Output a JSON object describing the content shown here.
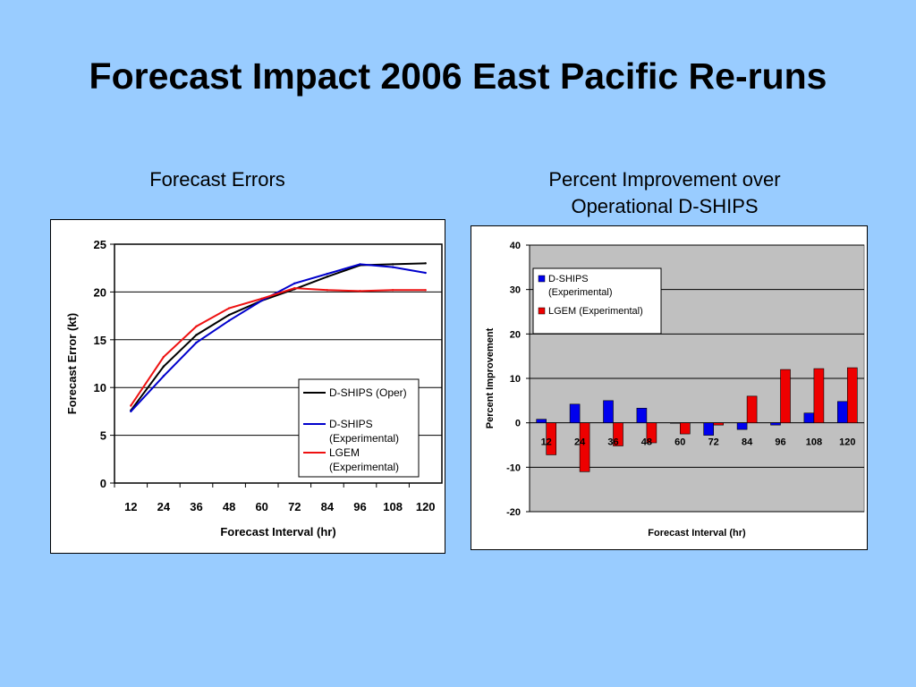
{
  "slide": {
    "title": "Forecast Impact 2006 East Pacific Re-runs"
  },
  "chart_data": [
    {
      "type": "line",
      "title": "Forecast Errors",
      "xlabel": "Forecast Interval (hr)",
      "ylabel": "Forecast Error (kt)",
      "categories": [
        "12",
        "24",
        "36",
        "48",
        "60",
        "72",
        "84",
        "96",
        "108",
        "120"
      ],
      "ylim": [
        0,
        25
      ],
      "yticks": [
        0,
        5,
        10,
        15,
        20,
        25
      ],
      "grid": true,
      "legend": "bottom-right",
      "series": [
        {
          "name": "D-SHIPS (Oper)",
          "color": "#000000",
          "values": [
            7.6,
            12.2,
            15.5,
            17.6,
            19.1,
            20.3,
            21.6,
            22.8,
            22.9,
            23.0
          ]
        },
        {
          "name": "D-SHIPS (Experimental)",
          "color": "#0000cc",
          "values": [
            7.5,
            11.2,
            14.7,
            17.0,
            19.1,
            20.9,
            21.9,
            22.9,
            22.6,
            22.0
          ]
        },
        {
          "name": "LGEM (Experimental)",
          "color": "#ee1111",
          "values": [
            8.1,
            13.2,
            16.4,
            18.3,
            19.3,
            20.4,
            20.2,
            20.1,
            20.2,
            20.2
          ]
        }
      ]
    },
    {
      "type": "bar",
      "title": "Percent Improvement over Operational D-SHIPS",
      "xlabel": "Forecast Interval (hr)",
      "ylabel": "Percent Improvement",
      "categories": [
        "12",
        "24",
        "36",
        "48",
        "60",
        "72",
        "84",
        "96",
        "108",
        "120"
      ],
      "ylim": [
        -20,
        40
      ],
      "yticks": [
        -20,
        -10,
        0,
        10,
        20,
        30,
        40
      ],
      "grid": true,
      "legend": "top-left",
      "plot_background": "#c0c0c0",
      "series": [
        {
          "name": "D-SHIPS (Experimental)",
          "color": "#0000ee",
          "values": [
            0.8,
            4.2,
            5.0,
            3.3,
            0.0,
            -2.8,
            -1.5,
            -0.5,
            2.2,
            4.8
          ]
        },
        {
          "name": "LGEM (Experimental)",
          "color": "#ee0000",
          "values": [
            -7.2,
            -11.0,
            -5.2,
            -4.5,
            -2.5,
            -0.5,
            6.0,
            12.0,
            12.2,
            12.4
          ]
        }
      ]
    }
  ]
}
